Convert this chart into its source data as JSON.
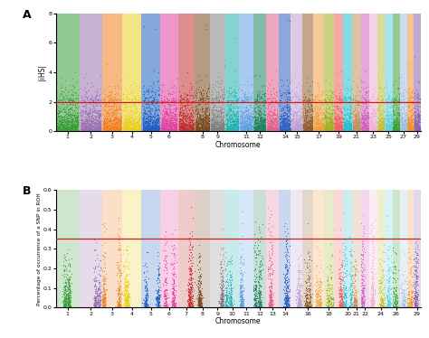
{
  "panel_a": {
    "title": "A",
    "ylabel": "|iHS|",
    "xlabel": "Chromosome",
    "ylim": [
      0,
      8
    ],
    "yticks": [
      0,
      2,
      4,
      6,
      8
    ],
    "threshold": 2.0,
    "shown_chrs": [
      1,
      2,
      3,
      4,
      5,
      6,
      8,
      9,
      11,
      12,
      14,
      15,
      17,
      19,
      21,
      23,
      25,
      27,
      29
    ],
    "n_chromosomes": 29
  },
  "panel_b": {
    "title": "B",
    "ylabel": "Percentage of occurrence of a SNP in ROH",
    "xlabel": "Chromosome",
    "ylim": [
      0,
      0.6
    ],
    "yticks": [
      0.0,
      0.1,
      0.2,
      0.3,
      0.4,
      0.5,
      0.6
    ],
    "threshold": 0.35,
    "shown_chrs": [
      1,
      2,
      3,
      4,
      5,
      6,
      7,
      8,
      9,
      10,
      11,
      12,
      13,
      14,
      16,
      18,
      20,
      21,
      22,
      24,
      26,
      29
    ],
    "n_chromosomes": 29
  },
  "chr_colors": [
    "#3a9e3a",
    "#9b72b0",
    "#f08020",
    "#e8d020",
    "#2060c0",
    "#e040a0",
    "#c03030",
    "#7a4a20",
    "#808080",
    "#20b0b0",
    "#60a0e0",
    "#208060",
    "#e06090",
    "#3060c0",
    "#c0a0d0",
    "#906030",
    "#f0a040",
    "#a0b020",
    "#f06060",
    "#20c0d0",
    "#c09060",
    "#d060c0",
    "#f0b0d0",
    "#c0c040",
    "#60d0e0",
    "#3aa03a",
    "#a0c0e0",
    "#f09030",
    "#9060b0"
  ],
  "chr_rel_widths": [
    1.0,
    0.95,
    0.85,
    0.82,
    0.78,
    0.75,
    0.7,
    0.66,
    0.63,
    0.6,
    0.58,
    0.56,
    0.53,
    0.51,
    0.48,
    0.46,
    0.44,
    0.42,
    0.4,
    0.38,
    0.36,
    0.35,
    0.34,
    0.33,
    0.32,
    0.31,
    0.3,
    0.29,
    0.28
  ],
  "background_color": "#ffffff",
  "threshold_color": "#c82020"
}
